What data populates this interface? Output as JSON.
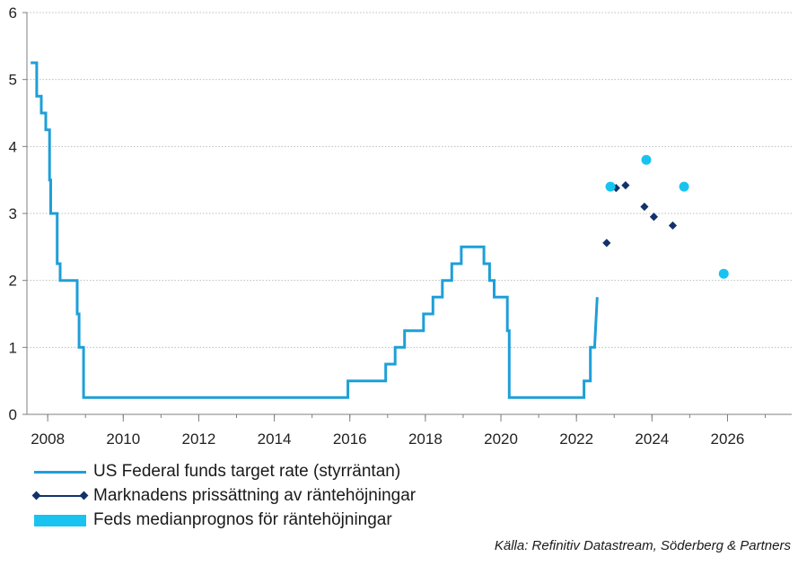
{
  "chart_data": {
    "type": "line",
    "title": "",
    "xlabel": "",
    "ylabel": "",
    "xlim": [
      2007.45,
      2027.7
    ],
    "ylim": [
      0,
      6
    ],
    "x_ticks": [
      2008,
      2010,
      2012,
      2014,
      2016,
      2018,
      2020,
      2022,
      2024,
      2026
    ],
    "y_ticks": [
      0,
      1,
      2,
      3,
      4,
      5,
      6
    ],
    "grid": "horizontal-dotted",
    "legend_position": "bottom-left",
    "colors": {
      "fed_line": "#1e9fd8",
      "market": "#12326b",
      "median": "#19c3f0",
      "grid": "#bdbdbd",
      "axis": "#7f7f7f"
    },
    "series": [
      {
        "name": "US Federal funds target rate (styrräntan)",
        "kind": "step-line",
        "points": [
          [
            2007.55,
            5.25
          ],
          [
            2007.71,
            5.25
          ],
          [
            2007.71,
            4.75
          ],
          [
            2007.83,
            4.75
          ],
          [
            2007.83,
            4.5
          ],
          [
            2007.95,
            4.5
          ],
          [
            2007.95,
            4.25
          ],
          [
            2008.05,
            4.25
          ],
          [
            2008.05,
            3.5
          ],
          [
            2008.08,
            3.5
          ],
          [
            2008.08,
            3.0
          ],
          [
            2008.25,
            3.0
          ],
          [
            2008.25,
            2.25
          ],
          [
            2008.33,
            2.25
          ],
          [
            2008.33,
            2.0
          ],
          [
            2008.78,
            2.0
          ],
          [
            2008.78,
            1.5
          ],
          [
            2008.83,
            1.5
          ],
          [
            2008.83,
            1.0
          ],
          [
            2008.95,
            1.0
          ],
          [
            2008.95,
            0.25
          ],
          [
            2015.95,
            0.25
          ],
          [
            2015.95,
            0.5
          ],
          [
            2016.95,
            0.5
          ],
          [
            2016.95,
            0.75
          ],
          [
            2017.2,
            0.75
          ],
          [
            2017.2,
            1.0
          ],
          [
            2017.45,
            1.0
          ],
          [
            2017.45,
            1.25
          ],
          [
            2017.95,
            1.25
          ],
          [
            2017.95,
            1.5
          ],
          [
            2018.2,
            1.5
          ],
          [
            2018.2,
            1.75
          ],
          [
            2018.45,
            1.75
          ],
          [
            2018.45,
            2.0
          ],
          [
            2018.7,
            2.0
          ],
          [
            2018.7,
            2.25
          ],
          [
            2018.95,
            2.25
          ],
          [
            2018.95,
            2.5
          ],
          [
            2019.55,
            2.5
          ],
          [
            2019.55,
            2.25
          ],
          [
            2019.7,
            2.25
          ],
          [
            2019.7,
            2.0
          ],
          [
            2019.82,
            2.0
          ],
          [
            2019.82,
            1.75
          ],
          [
            2020.17,
            1.75
          ],
          [
            2020.17,
            1.25
          ],
          [
            2020.22,
            1.25
          ],
          [
            2020.22,
            0.25
          ],
          [
            2022.2,
            0.25
          ],
          [
            2022.2,
            0.5
          ],
          [
            2022.37,
            0.5
          ],
          [
            2022.37,
            1.0
          ],
          [
            2022.48,
            1.0
          ],
          [
            2022.55,
            1.75
          ]
        ]
      },
      {
        "name": "Marknadens prissättning av räntehöjningar",
        "kind": "markers",
        "marker": "diamond",
        "points": [
          [
            2022.8,
            2.56
          ],
          [
            2023.05,
            3.38
          ],
          [
            2023.3,
            3.42
          ],
          [
            2023.8,
            3.1
          ],
          [
            2024.05,
            2.95
          ],
          [
            2024.55,
            2.82
          ]
        ]
      },
      {
        "name": "Feds medianprognos för räntehöjningar",
        "kind": "markers",
        "marker": "circle",
        "points": [
          [
            2022.9,
            3.4
          ],
          [
            2023.85,
            3.8
          ],
          [
            2024.85,
            3.4
          ],
          [
            2025.9,
            2.1
          ]
        ]
      }
    ]
  },
  "source": "Källa: Refinitiv Datastream, Söderberg & Partners"
}
